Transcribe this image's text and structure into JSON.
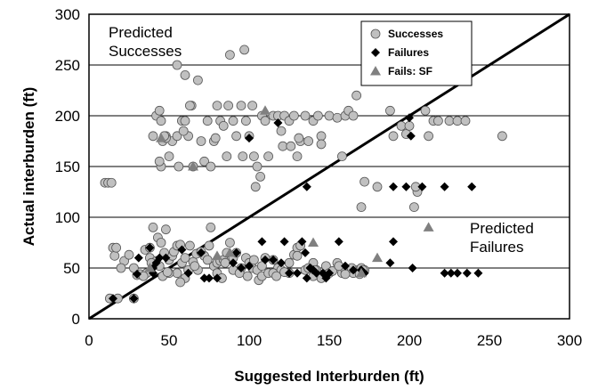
{
  "chart_data": {
    "type": "scatter",
    "xlabel": "Suggested Interburden (ft)",
    "ylabel": "Actual interburden (ft)",
    "xlim": [
      0,
      300
    ],
    "ylim": [
      0,
      300
    ],
    "x_ticks": [
      "0",
      "50",
      "100",
      "150",
      "200",
      "250",
      "300"
    ],
    "y_ticks": [
      "0",
      "50",
      "100",
      "150",
      "200",
      "250",
      "300"
    ],
    "grid": "horizontal",
    "legend_position": "top-right",
    "annotations": [
      "Predicted\nSuccesses",
      "Predicted\nFailures"
    ],
    "reference_line": {
      "x": [
        0,
        300
      ],
      "y": [
        0,
        300
      ]
    },
    "colors": {
      "successes": "#c0c0c0",
      "failures": "#000000",
      "fails_sf": "#808080"
    },
    "series": [
      {
        "name": "Successes",
        "marker": "circle",
        "points": [
          [
            10,
            134
          ],
          [
            12,
            134
          ],
          [
            14,
            134
          ],
          [
            15,
            70
          ],
          [
            16,
            62
          ],
          [
            17,
            70
          ],
          [
            13,
            20
          ],
          [
            18,
            20
          ],
          [
            22,
            57
          ],
          [
            20,
            50
          ],
          [
            25,
            63
          ],
          [
            28,
            20
          ],
          [
            30,
            43
          ],
          [
            32,
            44
          ],
          [
            35,
            68
          ],
          [
            38,
            60
          ],
          [
            38,
            70
          ],
          [
            40,
            90
          ],
          [
            42,
            57
          ],
          [
            43,
            80
          ],
          [
            45,
            75
          ],
          [
            47,
            65
          ],
          [
            48,
            88
          ],
          [
            50,
            58
          ],
          [
            52,
            62
          ],
          [
            53,
            66
          ],
          [
            55,
            72
          ],
          [
            57,
            73
          ],
          [
            58,
            55
          ],
          [
            60,
            60
          ],
          [
            62,
            48
          ],
          [
            55,
            45
          ],
          [
            50,
            45
          ],
          [
            46,
            42
          ],
          [
            60,
            40
          ],
          [
            65,
            56
          ],
          [
            67,
            64
          ],
          [
            70,
            66
          ],
          [
            72,
            62
          ],
          [
            75,
            72
          ],
          [
            76,
            90
          ],
          [
            78,
            52
          ],
          [
            80,
            55
          ],
          [
            82,
            57
          ],
          [
            84,
            58
          ],
          [
            86,
            65
          ],
          [
            88,
            75
          ],
          [
            90,
            60
          ],
          [
            92,
            65
          ],
          [
            95,
            50
          ],
          [
            98,
            60
          ],
          [
            100,
            55
          ],
          [
            102,
            50
          ],
          [
            105,
            48
          ],
          [
            106,
            38
          ],
          [
            108,
            42
          ],
          [
            112,
            45
          ],
          [
            115,
            58
          ],
          [
            118,
            50
          ],
          [
            120,
            48
          ],
          [
            125,
            55
          ],
          [
            128,
            63
          ],
          [
            130,
            70
          ],
          [
            132,
            72
          ],
          [
            135,
            48
          ],
          [
            140,
            55
          ],
          [
            142,
            48
          ],
          [
            145,
            40
          ],
          [
            148,
            52
          ],
          [
            150,
            45
          ],
          [
            155,
            55
          ],
          [
            158,
            45
          ],
          [
            160,
            48
          ],
          [
            165,
            45
          ],
          [
            168,
            48
          ],
          [
            170,
            50
          ],
          [
            172,
            48
          ],
          [
            80,
            45
          ],
          [
            85,
            55
          ],
          [
            90,
            48
          ],
          [
            110,
            60
          ],
          [
            115,
            45
          ],
          [
            125,
            45
          ],
          [
            130,
            62
          ],
          [
            140,
            42
          ],
          [
            160,
            44
          ],
          [
            40,
            180
          ],
          [
            42,
            200
          ],
          [
            44,
            205
          ],
          [
            45,
            150
          ],
          [
            46,
            175
          ],
          [
            48,
            180
          ],
          [
            50,
            160
          ],
          [
            52,
            175
          ],
          [
            55,
            180
          ],
          [
            56,
            150
          ],
          [
            58,
            195
          ],
          [
            60,
            195
          ],
          [
            62,
            180
          ],
          [
            64,
            210
          ],
          [
            65,
            150
          ],
          [
            68,
            235
          ],
          [
            70,
            175
          ],
          [
            72,
            155
          ],
          [
            74,
            195
          ],
          [
            76,
            150
          ],
          [
            78,
            175
          ],
          [
            80,
            210
          ],
          [
            82,
            195
          ],
          [
            84,
            190
          ],
          [
            86,
            160
          ],
          [
            88,
            260
          ],
          [
            90,
            195
          ],
          [
            92,
            180
          ],
          [
            95,
            210
          ],
          [
            97,
            265
          ],
          [
            98,
            195
          ],
          [
            100,
            180
          ],
          [
            102,
            210
          ],
          [
            104,
            130
          ],
          [
            105,
            150
          ],
          [
            108,
            200
          ],
          [
            110,
            195
          ],
          [
            112,
            160
          ],
          [
            115,
            200
          ],
          [
            118,
            200
          ],
          [
            120,
            185
          ],
          [
            122,
            200
          ],
          [
            125,
            195
          ],
          [
            128,
            200
          ],
          [
            130,
            160
          ],
          [
            132,
            175
          ],
          [
            135,
            200
          ],
          [
            137,
            175
          ],
          [
            140,
            195
          ],
          [
            143,
            200
          ],
          [
            145,
            180
          ],
          [
            150,
            200
          ],
          [
            155,
            198
          ],
          [
            160,
            200
          ],
          [
            162,
            205
          ],
          [
            165,
            200
          ],
          [
            167,
            220
          ],
          [
            170,
            110
          ],
          [
            172,
            135
          ],
          [
            180,
            130
          ],
          [
            188,
            205
          ],
          [
            190,
            180
          ],
          [
            195,
            190
          ],
          [
            198,
            182
          ],
          [
            200,
            190
          ],
          [
            203,
            110
          ],
          [
            205,
            125
          ],
          [
            215,
            195
          ],
          [
            218,
            195
          ],
          [
            225,
            195
          ],
          [
            230,
            195
          ],
          [
            235,
            195
          ],
          [
            258,
            180
          ],
          [
            55,
            250
          ],
          [
            60,
            240
          ],
          [
            48,
            178
          ],
          [
            44,
            155
          ],
          [
            45,
            195
          ],
          [
            47,
            180
          ],
          [
            59,
            185
          ],
          [
            63,
            210
          ],
          [
            79,
            178
          ],
          [
            87,
            210
          ],
          [
            96,
            160
          ],
          [
            103,
            160
          ],
          [
            107,
            140
          ],
          [
            121,
            170
          ],
          [
            126,
            170
          ],
          [
            131,
            178
          ],
          [
            145,
            172
          ],
          [
            158,
            160
          ],
          [
            204,
            130
          ],
          [
            210,
            205
          ],
          [
            212,
            180
          ],
          [
            44,
            52
          ],
          [
            39,
            55
          ],
          [
            36,
            45
          ],
          [
            28,
            50
          ],
          [
            34,
            42
          ],
          [
            57,
            36
          ],
          [
            68,
            48
          ],
          [
            74,
            58
          ],
          [
            83,
            40
          ],
          [
            94,
            45
          ],
          [
            99,
            42
          ],
          [
            103,
            58
          ],
          [
            108,
            52
          ],
          [
            117,
            42
          ],
          [
            122,
            46
          ],
          [
            137,
            50
          ],
          [
            141,
            48
          ],
          [
            152,
            47
          ],
          [
            156,
            52
          ],
          [
            164,
            50
          ],
          [
            169,
            44
          ],
          [
            171,
            48
          ],
          [
            63,
            72
          ],
          [
            66,
            52
          ],
          [
            49,
            46
          ]
        ]
      },
      {
        "name": "Failures",
        "marker": "diamond",
        "points": [
          [
            15,
            20
          ],
          [
            28,
            20
          ],
          [
            30,
            44
          ],
          [
            31,
            60
          ],
          [
            38,
            70
          ],
          [
            40,
            45
          ],
          [
            40,
            50
          ],
          [
            42,
            55
          ],
          [
            44,
            60
          ],
          [
            48,
            60
          ],
          [
            58,
            68
          ],
          [
            62,
            45
          ],
          [
            70,
            65
          ],
          [
            72,
            40
          ],
          [
            75,
            40
          ],
          [
            80,
            40
          ],
          [
            90,
            55
          ],
          [
            92,
            65
          ],
          [
            95,
            50
          ],
          [
            100,
            52
          ],
          [
            108,
            76
          ],
          [
            110,
            58
          ],
          [
            115,
            58
          ],
          [
            120,
            55
          ],
          [
            122,
            76
          ],
          [
            125,
            45
          ],
          [
            130,
            45
          ],
          [
            133,
            76
          ],
          [
            135,
            65
          ],
          [
            136,
            40
          ],
          [
            138,
            50
          ],
          [
            140,
            48
          ],
          [
            142,
            45
          ],
          [
            146,
            45
          ],
          [
            148,
            40
          ],
          [
            150,
            45
          ],
          [
            156,
            76
          ],
          [
            160,
            52
          ],
          [
            165,
            48
          ],
          [
            170,
            48
          ],
          [
            172,
            45
          ],
          [
            188,
            55
          ],
          [
            190,
            76
          ],
          [
            202,
            50
          ],
          [
            222,
            45
          ],
          [
            226,
            45
          ],
          [
            230,
            45
          ],
          [
            236,
            45
          ],
          [
            243,
            45
          ],
          [
            100,
            178
          ],
          [
            118,
            193
          ],
          [
            136,
            130
          ],
          [
            190,
            130
          ],
          [
            198,
            130
          ],
          [
            200,
            198
          ],
          [
            208,
            130
          ],
          [
            222,
            130
          ],
          [
            239,
            130
          ],
          [
            201,
            180
          ]
        ]
      },
      {
        "name": "Fails: SF",
        "marker": "triangle",
        "points": [
          [
            38,
            50
          ],
          [
            45,
            178
          ],
          [
            65,
            150
          ],
          [
            80,
            62
          ],
          [
            88,
            65
          ],
          [
            110,
            205
          ],
          [
            140,
            75
          ],
          [
            170,
            45
          ],
          [
            180,
            60
          ],
          [
            212,
            90
          ]
        ]
      }
    ]
  }
}
